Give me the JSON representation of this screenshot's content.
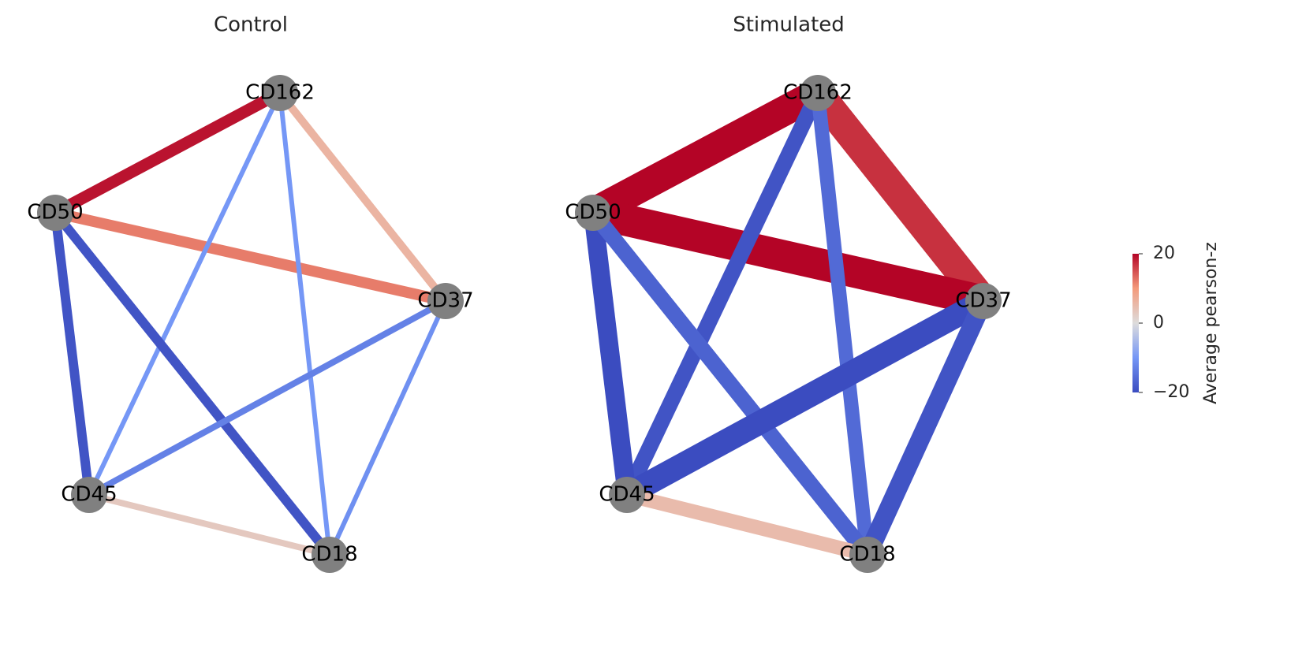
{
  "chart_data": [
    {
      "type": "network",
      "title": "Control",
      "nodes": [
        "CD162",
        "CD50",
        "CD37",
        "CD45",
        "CD18"
      ],
      "edges": [
        {
          "source": 0,
          "target": 1,
          "value": 19,
          "weight": 15
        },
        {
          "source": 1,
          "target": 2,
          "value": 12,
          "weight": 14
        },
        {
          "source": 0,
          "target": 2,
          "value": 6,
          "weight": 10
        },
        {
          "source": 0,
          "target": 3,
          "value": -10,
          "weight": 6
        },
        {
          "source": 0,
          "target": 4,
          "value": -10,
          "weight": 6
        },
        {
          "source": 1,
          "target": 3,
          "value": -19,
          "weight": 12
        },
        {
          "source": 1,
          "target": 4,
          "value": -19,
          "weight": 12
        },
        {
          "source": 2,
          "target": 3,
          "value": -13,
          "weight": 8
        },
        {
          "source": 2,
          "target": 4,
          "value": -11,
          "weight": 6
        },
        {
          "source": 3,
          "target": 4,
          "value": 3,
          "weight": 8
        }
      ]
    },
    {
      "type": "network",
      "title": "Stimulated",
      "nodes": [
        "CD162",
        "CD50",
        "CD37",
        "CD45",
        "CD18"
      ],
      "edges": [
        {
          "source": 0,
          "target": 1,
          "value": 30,
          "weight": 38
        },
        {
          "source": 0,
          "target": 2,
          "value": 17,
          "weight": 38
        },
        {
          "source": 1,
          "target": 2,
          "value": 30,
          "weight": 40
        },
        {
          "source": 0,
          "target": 3,
          "value": -19,
          "weight": 20
        },
        {
          "source": 0,
          "target": 4,
          "value": -16,
          "weight": 18
        },
        {
          "source": 1,
          "target": 3,
          "value": -20,
          "weight": 24
        },
        {
          "source": 1,
          "target": 4,
          "value": -17,
          "weight": 20
        },
        {
          "source": 2,
          "target": 3,
          "value": -20,
          "weight": 30
        },
        {
          "source": 2,
          "target": 4,
          "value": -19,
          "weight": 24
        },
        {
          "source": 3,
          "target": 4,
          "value": 5,
          "weight": 18
        }
      ]
    }
  ],
  "colorbar": {
    "label": "Average pearson-z",
    "lim": [
      -20,
      20
    ],
    "ticks": [
      {
        "value": -20,
        "label": "−20"
      },
      0,
      20
    ],
    "colormap": [
      "#3b4cc0",
      "#7597f6",
      "#dddcdc",
      "#f49a7b",
      "#b40426"
    ]
  }
}
